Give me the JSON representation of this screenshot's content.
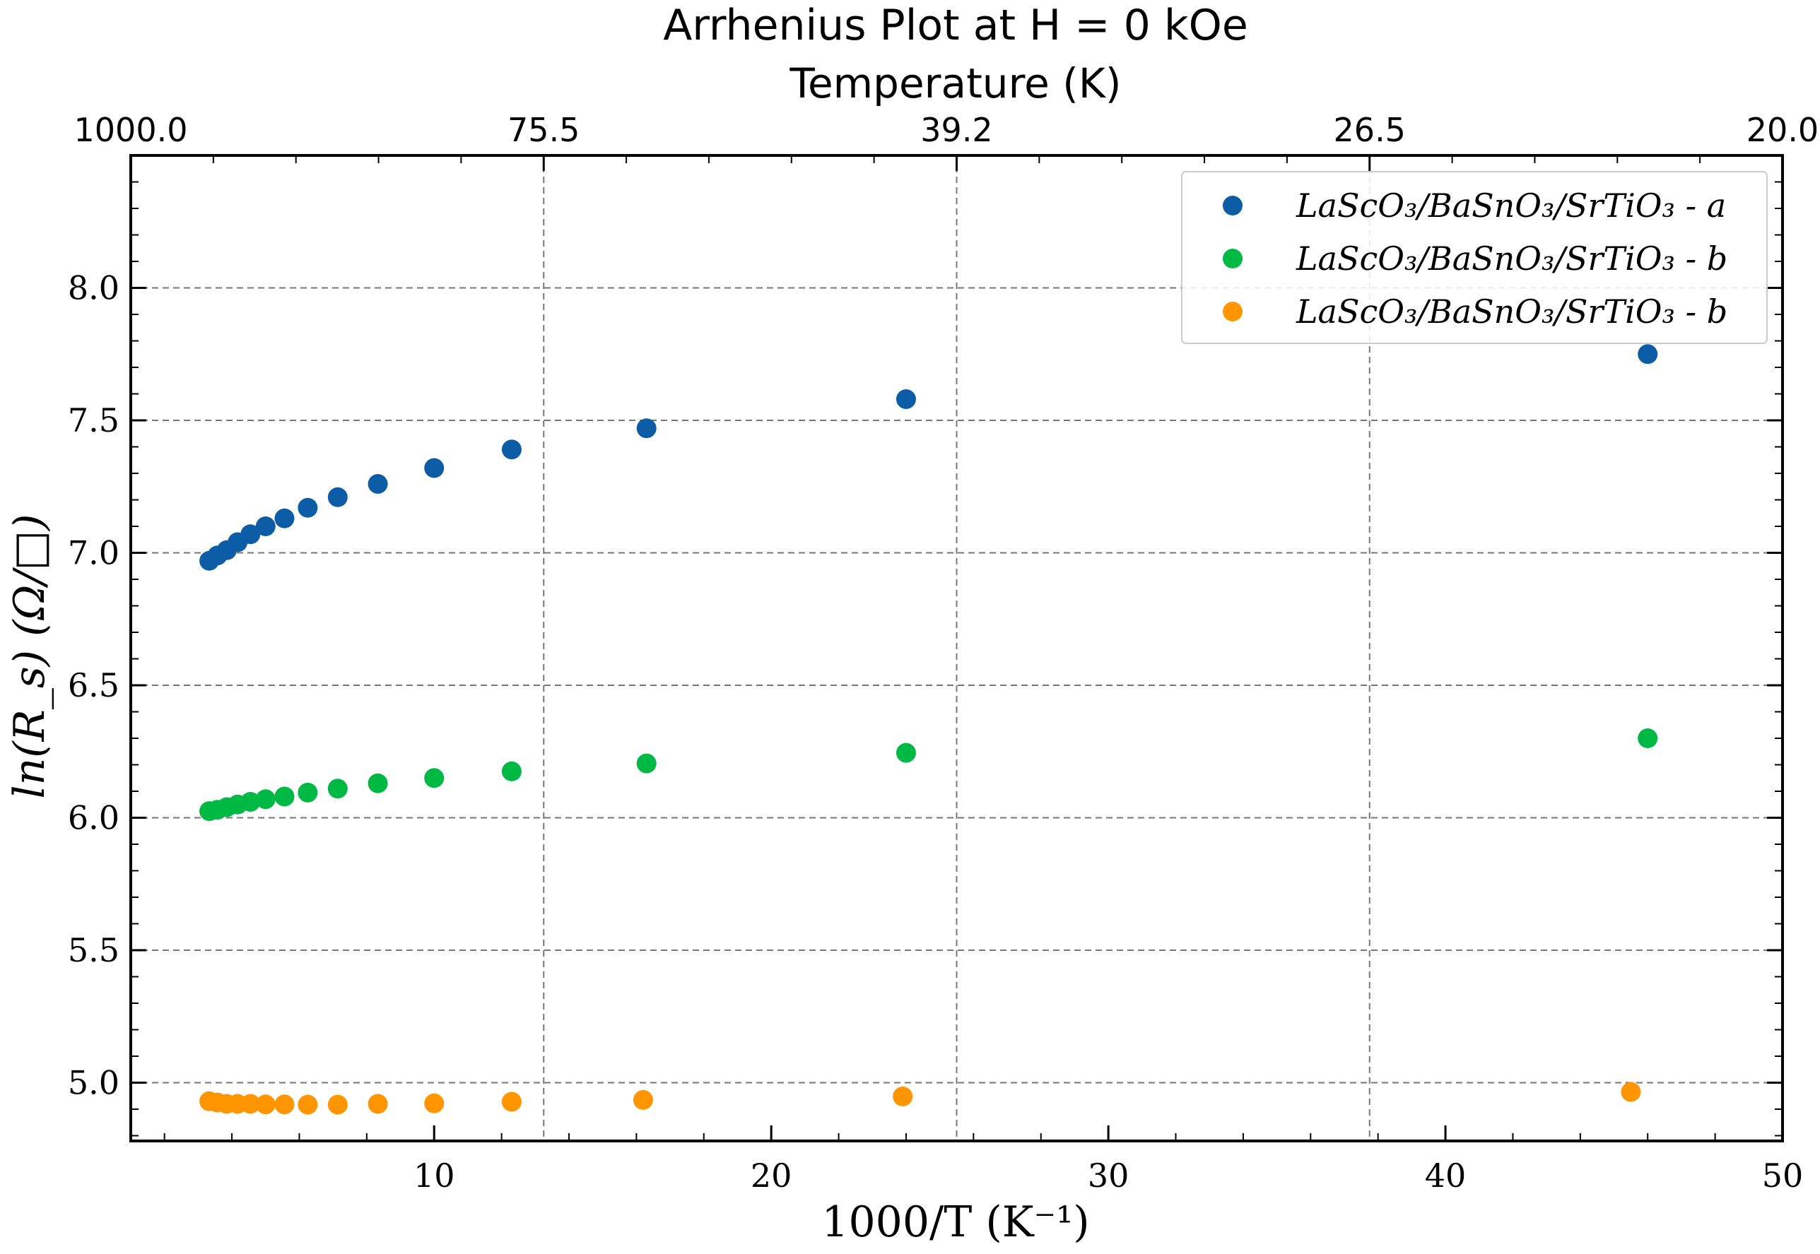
{
  "chart_data": {
    "type": "scatter",
    "title": "Arrhenius Plot at H = 0 kOe",
    "xlabel": "1000/T (K⁻¹)",
    "ylabel": "ln(R_s) (Ω/□)",
    "top_axis_label": "Temperature (K)",
    "xlim": [
      1,
      50
    ],
    "ylim": [
      4.78,
      8.5
    ],
    "x_ticks": [
      10,
      20,
      30,
      40,
      50
    ],
    "x_tick_labels": [
      "10",
      "20",
      "30",
      "40",
      "50"
    ],
    "y_ticks": [
      5.0,
      5.5,
      6.0,
      6.5,
      7.0,
      7.5,
      8.0
    ],
    "y_tick_labels": [
      "5.0",
      "5.5",
      "6.0",
      "6.5",
      "7.0",
      "7.5",
      "8.0"
    ],
    "top_ticks": [
      1,
      13.25,
      25.5,
      37.75,
      50
    ],
    "top_tick_labels": [
      "1000.0",
      "75.5",
      "39.2",
      "26.5",
      "20.0"
    ],
    "grid": true,
    "legend_position": "top-right",
    "series": [
      {
        "name": "LaScO₃/BaSnO₃/SrTiO₃ - a",
        "color": "#0c5da5",
        "x": [
          3.33,
          3.57,
          3.85,
          4.17,
          4.55,
          5.0,
          5.56,
          6.25,
          7.14,
          8.33,
          10.0,
          12.3,
          16.3,
          24.0,
          46.0
        ],
        "y": [
          6.97,
          6.99,
          7.01,
          7.04,
          7.07,
          7.1,
          7.13,
          7.17,
          7.21,
          7.26,
          7.32,
          7.39,
          7.47,
          7.58,
          7.75
        ]
      },
      {
        "name": "LaScO₃/BaSnO₃/SrTiO₃ - b",
        "color": "#00b945",
        "x": [
          3.33,
          3.57,
          3.85,
          4.17,
          4.55,
          5.0,
          5.56,
          6.25,
          7.14,
          8.33,
          10.0,
          12.3,
          16.3,
          24.0,
          46.0
        ],
        "y": [
          6.025,
          6.03,
          6.04,
          6.05,
          6.06,
          6.07,
          6.08,
          6.095,
          6.11,
          6.13,
          6.15,
          6.175,
          6.205,
          6.245,
          6.3
        ]
      },
      {
        "name": "LaScO₃/BaSnO₃/SrTiO₃ - b",
        "color": "#ff9500",
        "x": [
          3.33,
          3.57,
          3.85,
          4.17,
          4.55,
          5.0,
          5.56,
          6.25,
          7.14,
          8.33,
          10.0,
          12.3,
          16.2,
          23.9,
          45.5
        ],
        "y": [
          4.93,
          4.925,
          4.92,
          4.92,
          4.92,
          4.918,
          4.918,
          4.917,
          4.917,
          4.92,
          4.922,
          4.928,
          4.935,
          4.948,
          4.965
        ]
      }
    ]
  }
}
